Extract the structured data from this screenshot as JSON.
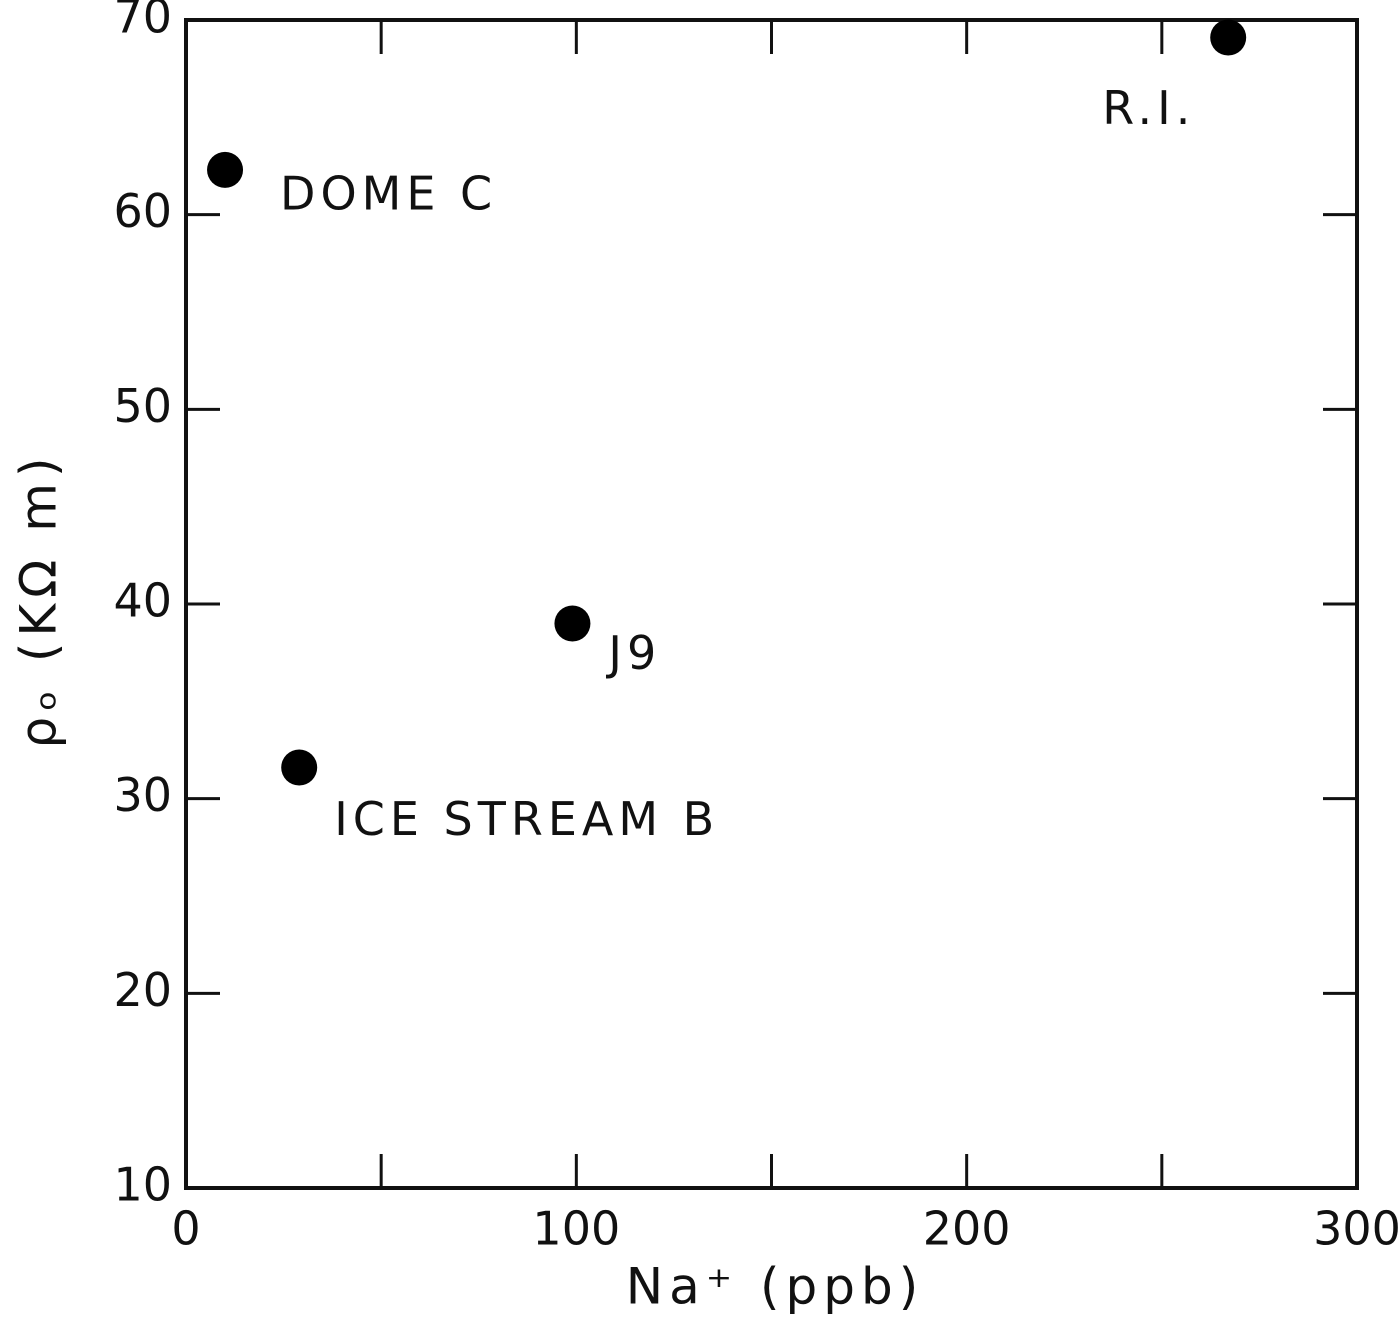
{
  "chart_data": {
    "type": "scatter",
    "xlabel": "Na⁺ (ppb)",
    "ylabel": "ρₒ (KΩ m)",
    "x": [
      10,
      29,
      99,
      267
    ],
    "values": [
      62.3,
      31.6,
      39.0,
      69.1
    ],
    "point_labels": [
      "DOME C",
      "ICE STREAM B",
      "J9",
      "R.I."
    ],
    "color": "#000000",
    "xlim": [
      0,
      300
    ],
    "xticks": [
      0,
      100,
      200,
      300
    ],
    "xminor_ticks": [
      50,
      150,
      250
    ],
    "ylim": [
      10,
      70
    ],
    "yticks": [
      10,
      20,
      30,
      40,
      50,
      60,
      70
    ],
    "grid": false
  }
}
